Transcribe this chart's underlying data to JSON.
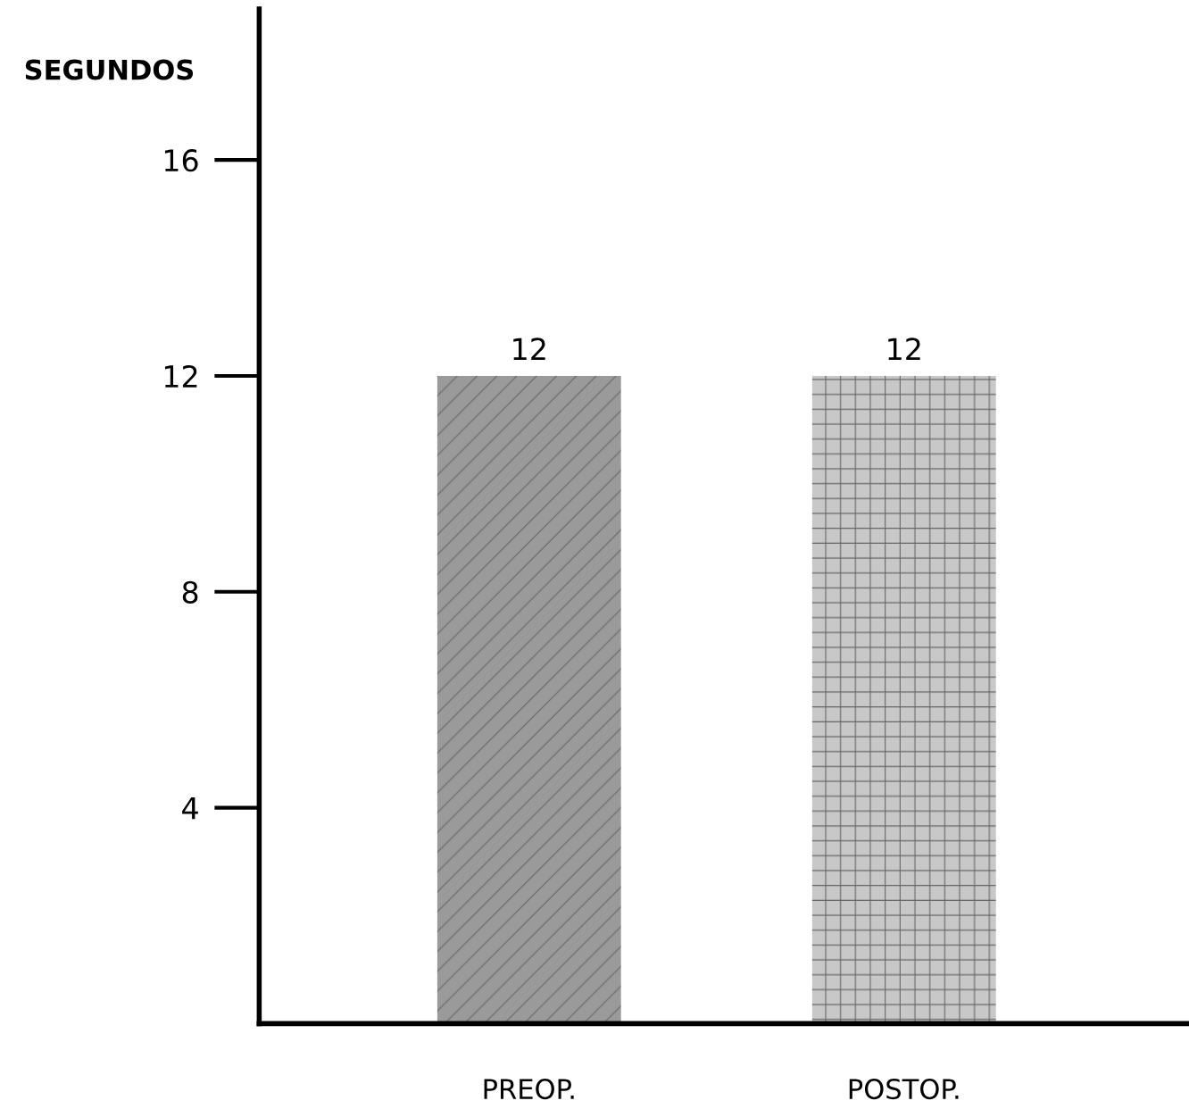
{
  "chart_data": {
    "type": "bar",
    "ylabel": "SEGUNDOS",
    "categories": [
      "PREOP.",
      "POSTOP."
    ],
    "values": [
      12,
      12
    ],
    "colors": [
      "#9a9a9a",
      "#c8c8c8"
    ],
    "ylim": [
      0,
      18.8
    ],
    "yticks": [
      4,
      8,
      12,
      16
    ],
    "data_labels": true,
    "grid": false,
    "legend": false
  }
}
